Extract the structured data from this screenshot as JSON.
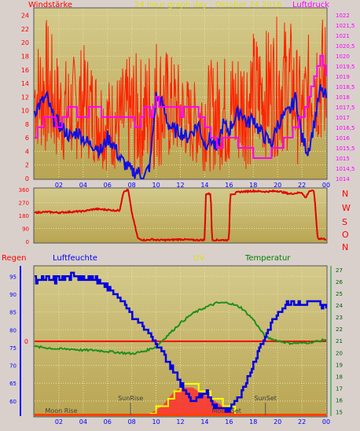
{
  "panel1": {
    "left_title": "Windstärke",
    "center_title": "24 hour graph day : Oktober 24 2016",
    "right_title": "Luftdruck"
  },
  "panel2": {
    "compass": [
      "N",
      "W",
      "S",
      "O",
      "N"
    ]
  },
  "panel3": {
    "title_regen": "Regen",
    "title_luftfeuchte": "Luftfeuchte",
    "title_uv": "UV",
    "title_temperatur": "Temperatur",
    "ann_sunrise": "SunRise",
    "ann_sunset": "SunSet",
    "ann_moonrise": "Moon Rise",
    "ann_moonset": "Moon Set"
  },
  "colors": {
    "bg": "#d9d0cc",
    "plot_top": "#d2c786",
    "plot_bottom": "#b8a450",
    "wind": "#ff2200",
    "wind_blue": "#1010e0",
    "pressure": "#ff00ff",
    "direction": "#e00000",
    "humidity": "#0000e0",
    "temperature": "#1f8f1f",
    "rain": "#ff0000",
    "uv_outline": "#ffff00",
    "uv_fill": "#ff3030",
    "title_red": "#ff0000",
    "title_blue": "#0000ff",
    "title_yellow": "#e0e000",
    "title_magenta": "#ff00ff",
    "title_green": "#008000"
  },
  "chart_data": [
    {
      "type": "line",
      "x_ticks": [
        "02",
        "04",
        "06",
        "08",
        "10",
        "12",
        "14",
        "16",
        "18",
        "20",
        "22",
        "00"
      ],
      "y_left_ticks": [
        0,
        2,
        4,
        6,
        8,
        10,
        12,
        14,
        16,
        18,
        20,
        22,
        24
      ],
      "y_left_range": [
        0,
        25
      ],
      "y_right_ticks": [
        "1014",
        "1014,5",
        "1015",
        "1015,5",
        "1016",
        "1016,5",
        "1017",
        "1017,5",
        "1018",
        "1018,5",
        "1019",
        "1019,5",
        "1020",
        "1020,5",
        "1021",
        "1021,5",
        "1022"
      ],
      "y_right_range": [
        1014,
        1022.3
      ],
      "series": [
        {
          "key": "gust",
          "hours": [
            0,
            1,
            2,
            3,
            4,
            5,
            6,
            7,
            8,
            9,
            10,
            11,
            12,
            13,
            14,
            15,
            16,
            17,
            18,
            19,
            20,
            21,
            22,
            23,
            24
          ],
          "lo": [
            4,
            3,
            2,
            2,
            3,
            2,
            1,
            1,
            0,
            0,
            1,
            2,
            3,
            2,
            1,
            1,
            1,
            1,
            2,
            3,
            3,
            4,
            1,
            5,
            4
          ],
          "hi": [
            20,
            24,
            18,
            18,
            20,
            17,
            15,
            16,
            19,
            18,
            22,
            19,
            17,
            14,
            17,
            18,
            19,
            20,
            22,
            22,
            24,
            24,
            17,
            25,
            24
          ]
        },
        {
          "key": "avg",
          "hours": [
            0,
            0.5,
            1,
            1.5,
            2,
            2.5,
            3,
            3.5,
            4,
            4.5,
            5,
            5.5,
            6,
            6.5,
            7,
            7.5,
            8,
            8.5,
            9,
            9.5,
            10,
            10.5,
            11,
            11.5,
            12,
            12.5,
            13,
            13.5,
            14,
            14.5,
            15,
            15.5,
            16,
            16.5,
            17,
            17.5,
            18,
            18.5,
            19,
            19.5,
            20,
            20.5,
            21,
            21.5,
            22,
            22.5,
            23,
            23.5,
            24
          ],
          "values": [
            10,
            11,
            12,
            9,
            8,
            7,
            6,
            7,
            6,
            5,
            5,
            4,
            6,
            5,
            3,
            2,
            1,
            1,
            0,
            2,
            12,
            11,
            8,
            7,
            7,
            6,
            7,
            8,
            5,
            6,
            4,
            8,
            7,
            9,
            10,
            8,
            9,
            7,
            6,
            5,
            8,
            9,
            10,
            12,
            6,
            4,
            8,
            13,
            12
          ]
        },
        {
          "key": "pressure",
          "hours": [
            0,
            0.5,
            1,
            2,
            3,
            3.5,
            4,
            5,
            5.5,
            6,
            7,
            8,
            8.5,
            9,
            9.5,
            10,
            11,
            12,
            13,
            13.5,
            14,
            15,
            16,
            17,
            17.5,
            18,
            19,
            20,
            21,
            21.5,
            22,
            22.5,
            23,
            23.5,
            24
          ],
          "values": [
            1016,
            1016.5,
            1017,
            1016.5,
            1017.5,
            1017.2,
            1017,
            1017.5,
            1017.2,
            1016.8,
            1017.2,
            1016.8,
            1016.5,
            1017.5,
            1017,
            1017.8,
            1017.5,
            1017.2,
            1017.6,
            1017,
            1016.5,
            1015.5,
            1016,
            1015.5,
            1015.5,
            1015,
            1015,
            1015.5,
            1016,
            1016.5,
            1017,
            1017.8,
            1019,
            1020,
            1019
          ]
        }
      ]
    },
    {
      "type": "line",
      "y_ticks": [
        0,
        90,
        180,
        270,
        360
      ],
      "y_range": [
        0,
        360
      ],
      "series": [
        {
          "key": "direction",
          "hours": [
            0,
            1,
            2,
            3,
            4,
            5,
            6,
            6.5,
            7,
            7.3,
            7.7,
            8,
            8.2,
            8.5,
            9,
            9.3,
            9.7,
            10,
            11,
            12,
            13,
            14,
            14.1,
            14.5,
            14.6,
            15,
            16,
            16.1,
            16.5,
            16.6,
            17,
            18,
            19,
            20,
            21,
            22,
            22.3,
            22.6,
            23,
            23.3,
            23.6,
            24
          ],
          "values": [
            200,
            205,
            200,
            205,
            210,
            225,
            220,
            215,
            215,
            340,
            360,
            200,
            130,
            20,
            10,
            10,
            15,
            10,
            10,
            15,
            10,
            10,
            330,
            330,
            10,
            10,
            10,
            330,
            330,
            340,
            345,
            350,
            345,
            350,
            330,
            340,
            300,
            350,
            350,
            20,
            20,
            15
          ]
        }
      ]
    },
    {
      "type": "line",
      "x_ticks": [
        "02",
        "04",
        "06",
        "08",
        "10",
        "12",
        "14",
        "16",
        "18",
        "20",
        "22",
        "00"
      ],
      "y_left_ticks": [
        60,
        65,
        70,
        75,
        80,
        85,
        90,
        95
      ],
      "y_left_range": [
        56,
        97.5
      ],
      "y_right_ticks": [
        15,
        16,
        17,
        18,
        19,
        20,
        21,
        22,
        23,
        24,
        25,
        26,
        27
      ],
      "y_right_range": [
        14.7,
        27.2
      ],
      "rain_value": 0,
      "series": [
        {
          "key": "humidity",
          "hours": [
            0,
            2,
            3,
            4,
            5,
            6,
            7,
            8,
            9,
            10,
            11,
            12,
            13,
            14,
            15,
            16,
            17,
            18,
            19,
            20,
            21,
            22,
            23,
            24
          ],
          "values": [
            94,
            94,
            95,
            95,
            94,
            92,
            89,
            84,
            81,
            76,
            71,
            65,
            59,
            63,
            58,
            58,
            62,
            70,
            79,
            85,
            88,
            87,
            88,
            86
          ]
        },
        {
          "key": "temperature",
          "hours": [
            0,
            1,
            2,
            3,
            4,
            5,
            6,
            7,
            8,
            9,
            10,
            11,
            12,
            13,
            14,
            15,
            16,
            17,
            18,
            19,
            20,
            21,
            22,
            23,
            24
          ],
          "values": [
            20.5,
            20.4,
            20.3,
            20.3,
            20.2,
            20.2,
            20.1,
            20.0,
            19.9,
            20.1,
            20.5,
            21.5,
            22.5,
            23.3,
            23.8,
            24.2,
            24.2,
            23.8,
            22.8,
            21.3,
            21.0,
            20.8,
            20.8,
            20.9,
            21.1
          ]
        },
        {
          "key": "uv",
          "hours": [
            9.5,
            10,
            10.5,
            11,
            11.5,
            12,
            12.5,
            13,
            13.5,
            14,
            14.5,
            15,
            15.5,
            16,
            16.5
          ],
          "values": [
            0,
            0.5,
            1,
            2,
            3,
            3.5,
            3.5,
            3.5,
            3,
            2.5,
            2,
            1.5,
            1,
            0.5,
            0
          ]
        }
      ]
    }
  ]
}
